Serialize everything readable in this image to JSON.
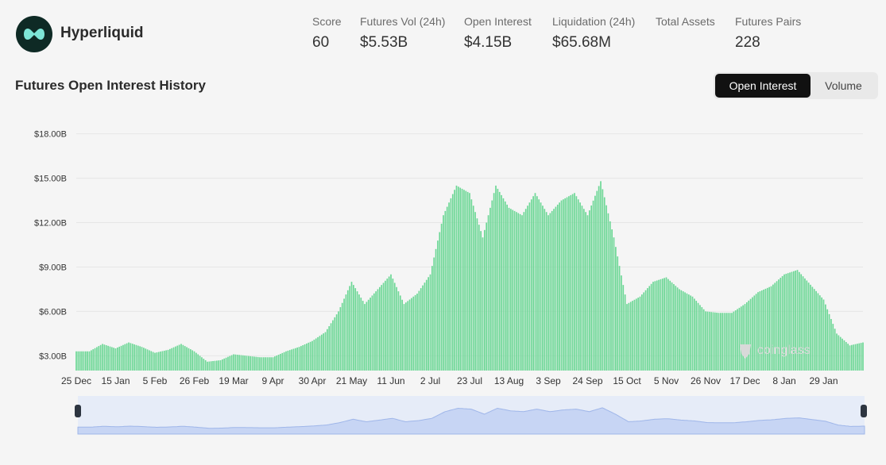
{
  "app": {
    "name": "Hyperliquid",
    "accent_color": "#7de5d6",
    "logo_bg": "#0e2a25"
  },
  "stats": [
    {
      "label": "Score",
      "value": "60"
    },
    {
      "label": "Futures Vol (24h)",
      "value": "$5.53B"
    },
    {
      "label": "Open Interest",
      "value": "$4.15B"
    },
    {
      "label": "Liquidation (24h)",
      "value": "$65.68M"
    },
    {
      "label": "Total Assets",
      "value": ""
    },
    {
      "label": "Futures Pairs",
      "value": "228"
    }
  ],
  "section": {
    "title": "Futures Open Interest History"
  },
  "toggle": {
    "active": "Open Interest",
    "inactive": "Volume"
  },
  "watermark": "coinglass",
  "chart_data": {
    "type": "bar",
    "title": "Futures Open Interest History",
    "series_name": "Open Interest",
    "unit": "USD billions",
    "bar_color": "#6dd796",
    "ylim": [
      2.0,
      19.0
    ],
    "y_ticks": [
      {
        "value": 3,
        "label": "$3.00B"
      },
      {
        "value": 6,
        "label": "$6.00B"
      },
      {
        "value": 9,
        "label": "$9.00B"
      },
      {
        "value": 12,
        "label": "$12.00B"
      },
      {
        "value": 15,
        "label": "$15.00B"
      },
      {
        "value": 18,
        "label": "$18.00B"
      }
    ],
    "x_ticks": [
      {
        "index": 0,
        "label": "25 Dec"
      },
      {
        "index": 3,
        "label": "15 Jan"
      },
      {
        "index": 6,
        "label": "5 Feb"
      },
      {
        "index": 9,
        "label": "26 Feb"
      },
      {
        "index": 12,
        "label": "19 Mar"
      },
      {
        "index": 15,
        "label": "9 Apr"
      },
      {
        "index": 18,
        "label": "30 Apr"
      },
      {
        "index": 21,
        "label": "21 May"
      },
      {
        "index": 24,
        "label": "11 Jun"
      },
      {
        "index": 27,
        "label": "2 Jul"
      },
      {
        "index": 30,
        "label": "23 Jul"
      },
      {
        "index": 33,
        "label": "13 Aug"
      },
      {
        "index": 36,
        "label": "3 Sep"
      },
      {
        "index": 39,
        "label": "24 Sep"
      },
      {
        "index": 42,
        "label": "15 Oct"
      },
      {
        "index": 45,
        "label": "5 Nov"
      },
      {
        "index": 48,
        "label": "26 Nov"
      },
      {
        "index": 51,
        "label": "17 Dec"
      },
      {
        "index": 54,
        "label": "8 Jan"
      },
      {
        "index": 57,
        "label": "29 Jan"
      }
    ],
    "weekly_values": [
      3.3,
      3.3,
      3.8,
      3.5,
      3.9,
      3.6,
      3.2,
      3.4,
      3.8,
      3.3,
      2.6,
      2.7,
      3.1,
      3.0,
      2.9,
      2.9,
      3.3,
      3.6,
      4.0,
      4.6,
      6.0,
      8.0,
      6.5,
      7.5,
      8.5,
      6.5,
      7.2,
      8.5,
      12.5,
      14.5,
      14.0,
      11.0,
      14.5,
      13.0,
      12.5,
      14.0,
      12.5,
      13.5,
      14.0,
      12.5,
      14.8,
      11.0,
      6.5,
      7.0,
      8.0,
      8.3,
      7.5,
      7.0,
      6.0,
      5.9,
      5.9,
      6.5,
      7.3,
      7.7,
      8.5,
      8.8,
      7.8,
      6.8,
      4.5,
      3.7,
      3.9
    ]
  }
}
